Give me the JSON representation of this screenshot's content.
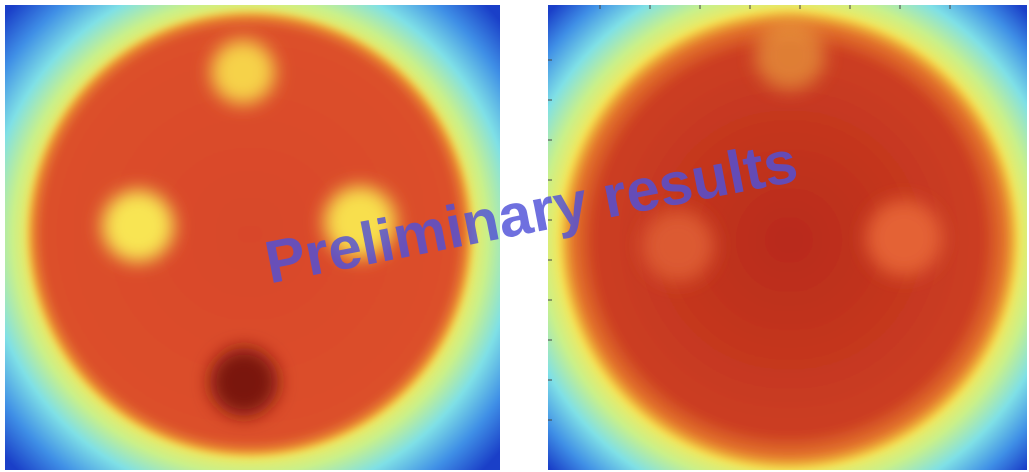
{
  "watermark": "Preliminary results"
}
